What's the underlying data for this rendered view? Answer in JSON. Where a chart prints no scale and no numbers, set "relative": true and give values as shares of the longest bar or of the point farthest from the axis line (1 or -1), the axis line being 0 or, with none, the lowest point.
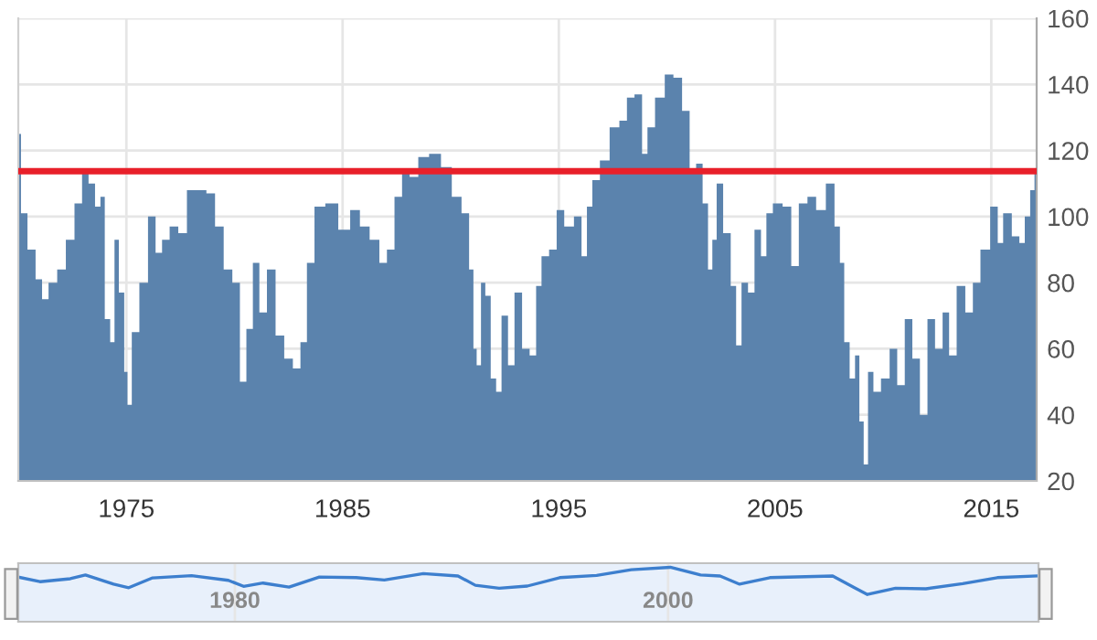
{
  "chart_data": [
    {
      "type": "area",
      "x": [
        1970.0,
        1970.25,
        1970.6,
        1971.0,
        1971.2,
        1971.6,
        1972.0,
        1972.4,
        1972.8,
        1973.1,
        1973.4,
        1973.7,
        1973.9,
        1974.1,
        1974.4,
        1974.5,
        1974.8,
        1975.0,
        1975.1,
        1975.4,
        1975.8,
        1976.2,
        1976.5,
        1976.8,
        1977.2,
        1977.6,
        1978.0,
        1978.5,
        1978.9,
        1979.3,
        1979.7,
        1980.1,
        1980.4,
        1980.7,
        1981.0,
        1981.3,
        1981.7,
        1982.1,
        1982.5,
        1982.9,
        1983.2,
        1983.5,
        1983.9,
        1984.5,
        1985.1,
        1985.6,
        1986.0,
        1986.5,
        1986.9,
        1987.2,
        1987.6,
        1987.9,
        1988.3,
        1988.7,
        1989.3,
        1989.8,
        1990.3,
        1990.7,
        1991.0,
        1991.1,
        1991.3,
        1991.5,
        1991.7,
        1992.0,
        1992.2,
        1992.5,
        1992.8,
        1993.1,
        1993.5,
        1993.8,
        1994.1,
        1994.3,
        1994.8,
        1995.0,
        1995.5,
        1995.9,
        1996.2,
        1996.4,
        1996.7,
        1997.1,
        1997.6,
        1998.0,
        1998.3,
        1998.7,
        1999.0,
        1999.2,
        1999.7,
        2000.1,
        2000.5,
        2000.9,
        2001.2,
        2001.5,
        2001.8,
        2002.0,
        2002.2,
        2002.4,
        2002.8,
        2003.1,
        2003.3,
        2003.6,
        2003.9,
        2004.2,
        2004.5,
        2004.7,
        2005.1,
        2005.6,
        2005.9,
        2006.3,
        2006.7,
        2007.1,
        2007.6,
        2007.9,
        2008.1,
        2008.3,
        2008.6,
        2008.8,
        2009.0,
        2009.2,
        2009.4,
        2009.7,
        2010.1,
        2010.5,
        2010.8,
        2011.2,
        2011.5,
        2011.9,
        2012.2,
        2012.6,
        2012.9,
        2013.2,
        2013.6,
        2014.0,
        2014.3,
        2014.7,
        2015.2,
        2015.4,
        2015.7,
        2016.2,
        2016.4,
        2016.7,
        2016.9,
        2017.1
      ],
      "series": [
        {
          "color": "#5b83ad",
          "values": [
            125,
            101,
            90,
            81,
            75,
            80,
            84,
            93,
            104,
            114,
            110,
            103,
            106,
            69,
            62,
            93,
            77,
            53,
            43,
            65,
            80,
            100,
            89,
            93,
            97,
            95,
            108,
            108,
            107,
            97,
            84,
            80,
            50,
            66,
            86,
            71,
            84,
            64,
            57,
            54,
            62,
            86,
            103,
            104,
            96,
            102,
            97,
            93,
            86,
            90,
            106,
            114,
            112,
            118,
            119,
            115,
            106,
            101,
            84,
            60,
            55,
            80,
            76,
            51,
            47,
            70,
            55,
            77,
            60,
            58,
            79,
            88,
            90,
            102,
            97,
            100,
            88,
            103,
            111,
            117,
            127,
            129,
            136,
            137,
            119,
            127,
            136,
            143,
            142,
            132,
            113,
            116,
            104,
            84,
            93,
            110,
            95,
            79,
            61,
            80,
            77,
            96,
            88,
            101,
            104,
            103,
            85,
            104,
            106,
            102,
            110,
            97,
            86,
            62,
            51,
            58,
            38,
            25,
            53,
            47,
            51,
            60,
            49,
            69,
            57,
            40,
            69,
            60,
            71,
            58,
            79,
            71,
            80,
            90,
            103,
            92,
            101,
            94,
            92,
            100,
            108,
            113
          ]
        }
      ],
      "xlim": [
        1970.0,
        2017.1
      ],
      "xticks": [
        1975,
        1985,
        1995,
        2005,
        2015
      ],
      "ylim": [
        20,
        160
      ],
      "yticks": [
        20,
        40,
        60,
        80,
        100,
        120,
        140,
        160
      ],
      "grid": true,
      "legend": false,
      "ref_lines": [
        {
          "axis": "y",
          "value": 113.7,
          "color": "#e8202a",
          "line_style": "solid"
        }
      ]
    },
    {
      "type": "line",
      "relative": true,
      "x": [
        1970.0,
        1971.0,
        1972.4,
        1973.1,
        1974.4,
        1975.1,
        1976.2,
        1978.0,
        1979.7,
        1980.4,
        1981.3,
        1982.5,
        1983.9,
        1985.6,
        1986.9,
        1988.7,
        1990.3,
        1991.1,
        1992.2,
        1993.5,
        1995.0,
        1996.7,
        1998.3,
        2000.1,
        2001.5,
        2002.4,
        2003.3,
        2004.7,
        2007.6,
        2008.6,
        2009.2,
        2010.5,
        2011.9,
        2013.6,
        2015.2,
        2017.0
      ],
      "series": [
        {
          "color": "#3d7fce",
          "values": [
            0.64,
            0.47,
            0.58,
            0.72,
            0.38,
            0.25,
            0.61,
            0.69,
            0.52,
            0.3,
            0.42,
            0.27,
            0.64,
            0.62,
            0.53,
            0.77,
            0.68,
            0.34,
            0.23,
            0.31,
            0.62,
            0.7,
            0.91,
            1,
            0.72,
            0.68,
            0.38,
            0.62,
            0.68,
            0.25,
            0,
            0.23,
            0.21,
            0.4,
            0.62,
            0.68
          ]
        }
      ],
      "xlim": [
        1970.0,
        2017.1
      ],
      "xticks": [
        1980,
        2000
      ],
      "tick_labels": "x",
      "grid": "x",
      "legend": false
    }
  ]
}
